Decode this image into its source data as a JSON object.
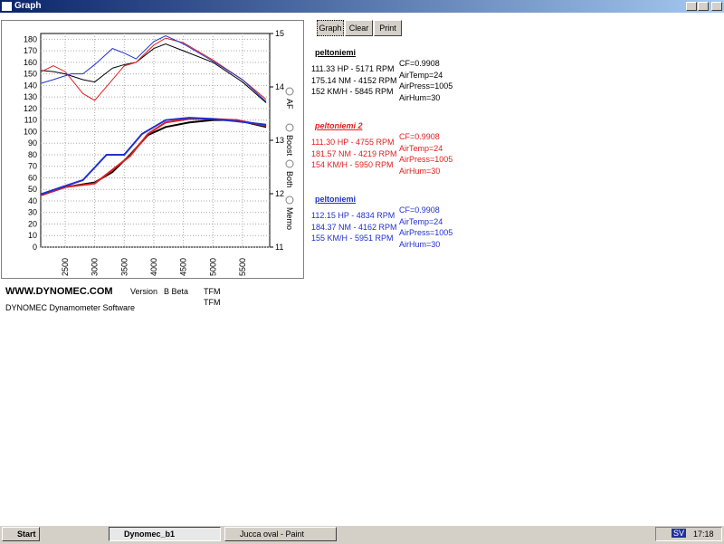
{
  "window": {
    "title": "Graph"
  },
  "toolbar": {
    "buttons": [
      "Graph",
      "Clear",
      "Print"
    ]
  },
  "chart_data": {
    "type": "line",
    "xlim": [
      2087,
      5960
    ],
    "ylim": [
      0,
      185
    ],
    "y2lim": [
      11,
      15
    ],
    "xticks": [
      2500,
      3000,
      3500,
      4000,
      4500,
      5000,
      5500
    ],
    "yticks": [
      0,
      10,
      20,
      30,
      40,
      50,
      60,
      70,
      80,
      90,
      100,
      110,
      120,
      130,
      140,
      150,
      160,
      170,
      180
    ],
    "y2ticks": [
      11,
      12,
      13,
      14,
      15
    ],
    "grid": true,
    "series": [
      {
        "color": "#000000",
        "x": [
          2100,
          2300,
          2500,
          2800,
          3000,
          3300,
          3500,
          3700,
          4000,
          4200,
          4500,
          5000,
          5500,
          5900
        ],
        "values": [
          153,
          152,
          150,
          145,
          143,
          155,
          158,
          160,
          172,
          176,
          170,
          160,
          143,
          125
        ]
      },
      {
        "color": "#e02020",
        "x": [
          2100,
          2300,
          2500,
          2800,
          3000,
          3300,
          3500,
          3700,
          4000,
          4200,
          4500,
          5000,
          5500,
          5900
        ],
        "values": [
          152,
          157,
          152,
          133,
          127,
          145,
          157,
          160,
          175,
          181,
          177,
          162,
          145,
          128
        ]
      },
      {
        "color": "#2030d0",
        "x": [
          2100,
          2300,
          2600,
          2800,
          3000,
          3300,
          3500,
          3700,
          4000,
          4200,
          4500,
          5000,
          5500,
          5900
        ],
        "values": [
          142,
          145,
          150,
          150,
          158,
          172,
          168,
          163,
          178,
          183,
          176,
          161,
          145,
          126
        ]
      },
      {
        "color": "#000000",
        "x": [
          2100,
          2500,
          3000,
          3300,
          3600,
          3900,
          4200,
          4600,
          5000,
          5400,
          5900
        ],
        "values": [
          45,
          52,
          56,
          65,
          80,
          97,
          104,
          108,
          110,
          110,
          104
        ]
      },
      {
        "color": "#e02020",
        "x": [
          2100,
          2500,
          3000,
          3300,
          3600,
          3900,
          4200,
          4600,
          5000,
          5400,
          5900
        ],
        "values": [
          45,
          52,
          55,
          67,
          79,
          98,
          108,
          111,
          111,
          110,
          105
        ]
      },
      {
        "color": "#2030d0",
        "x": [
          2100,
          2500,
          2800,
          3200,
          3500,
          3800,
          4200,
          4600,
          5000,
          5400,
          5900
        ],
        "values": [
          46,
          53,
          58,
          80,
          80,
          98,
          110,
          112,
          111,
          109,
          106
        ]
      }
    ]
  },
  "options": [
    "AF",
    "Boost",
    "Both",
    "Memo"
  ],
  "runs": [
    {
      "name": "peltoniemi",
      "color": "#000000",
      "lines": [
        "111.33 HP - 5171 RPM",
        "175.14 NM - 4152 RPM",
        "152 KM/H - 5845 RPM"
      ],
      "params": [
        "CF=0.9908",
        "AirTemp=24",
        "AirPress=1005",
        "AirHum=30"
      ]
    },
    {
      "name": "peltoniemi 2",
      "color": "#e02020",
      "lines": [
        "111.30 HP - 4755 RPM",
        "181.57 NM - 4219 RPM",
        "154 KM/H - 5950 RPM"
      ],
      "params": [
        "CF=0.9908",
        "AirTemp=24",
        "AirPress=1005",
        "AirHum=30"
      ]
    },
    {
      "name": "peltoniemi",
      "color": "#2030d0",
      "lines": [
        "112.15 HP - 4834 RPM",
        "184.37 NM - 4162 RPM",
        "155 KM/H - 5951 RPM"
      ],
      "params": [
        "CF=0.9908",
        "AirTemp=24",
        "AirPress=1005",
        "AirHum=30"
      ]
    }
  ],
  "footer": {
    "url": "WWW.DYNOMEC.COM",
    "version_label": "Version",
    "version": "B Beta",
    "tfm1": "TFM",
    "tfm2": "TFM",
    "product": "DYNOMEC Dynamometer Software"
  },
  "taskbar": {
    "start": "Start",
    "tasks": [
      "Dynomec_b1",
      "Jucca oval - Paint"
    ],
    "lang": "SV",
    "clock": "17:18"
  }
}
